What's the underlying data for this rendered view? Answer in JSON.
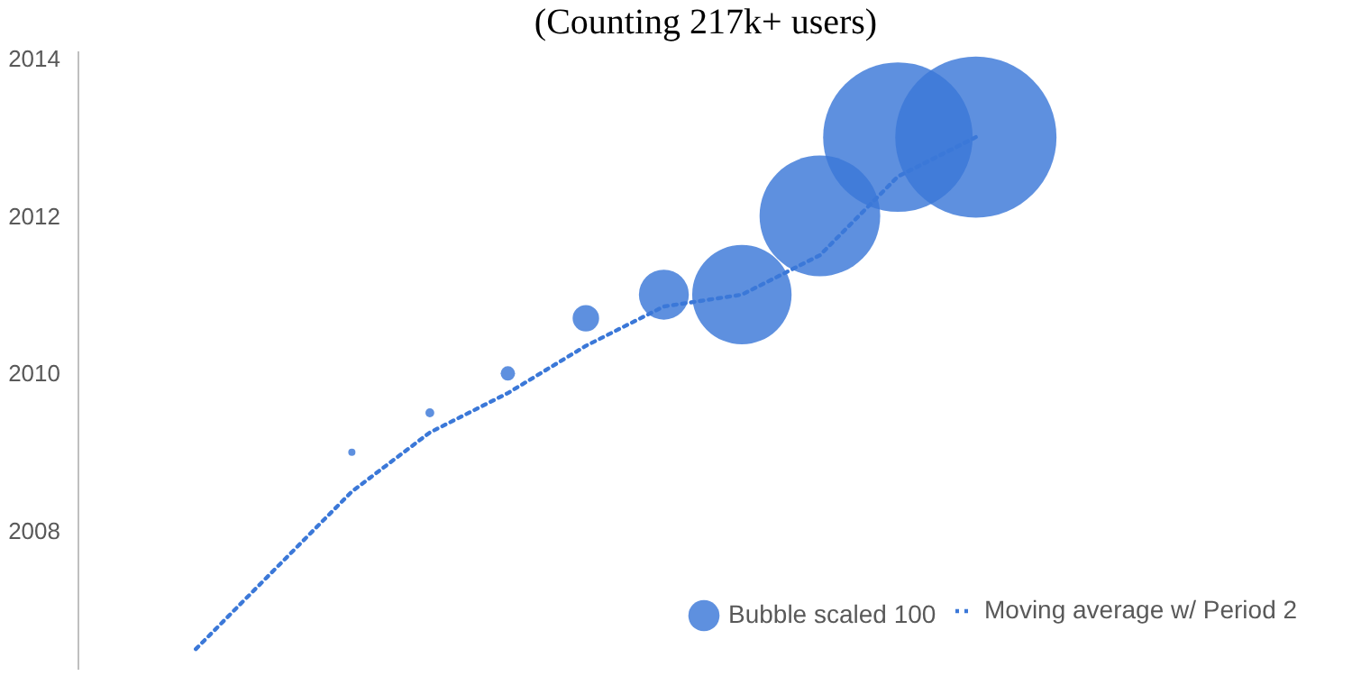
{
  "chart_data": {
    "type": "bubble",
    "title": "(Counting 217k+ users)",
    "categories": [
      null,
      null,
      null,
      null,
      null,
      null,
      null,
      null,
      null,
      null,
      null
    ],
    "series": [
      {
        "name": "Bubble scaled 100",
        "color": "#3b78d8",
        "values": [
          null,
          null,
          2009.0,
          2009.5,
          2010.0,
          2010.7,
          2011.0,
          2011.0,
          2012.0,
          2013.0,
          2013.0
        ],
        "sizes": [
          null,
          null,
          0.002,
          0.003,
          0.008,
          0.027,
          0.096,
          0.38,
          0.56,
          0.86,
          1
        ]
      },
      {
        "name": "Moving average w/ Period 2",
        "type": "line",
        "line_style": "dotted",
        "color": "#3b78d8",
        "values": [
          2006.5,
          2007.5,
          2008.5,
          2009.25,
          2009.75,
          2010.35,
          2010.85,
          2011.0,
          2011.5,
          2012.5,
          2013.0
        ]
      }
    ],
    "ylim": [
      2006.25,
      2014.1
    ],
    "yticks": [
      2008,
      2010,
      2012,
      2014
    ],
    "tick_labels": "y",
    "legend": "bottom right"
  }
}
